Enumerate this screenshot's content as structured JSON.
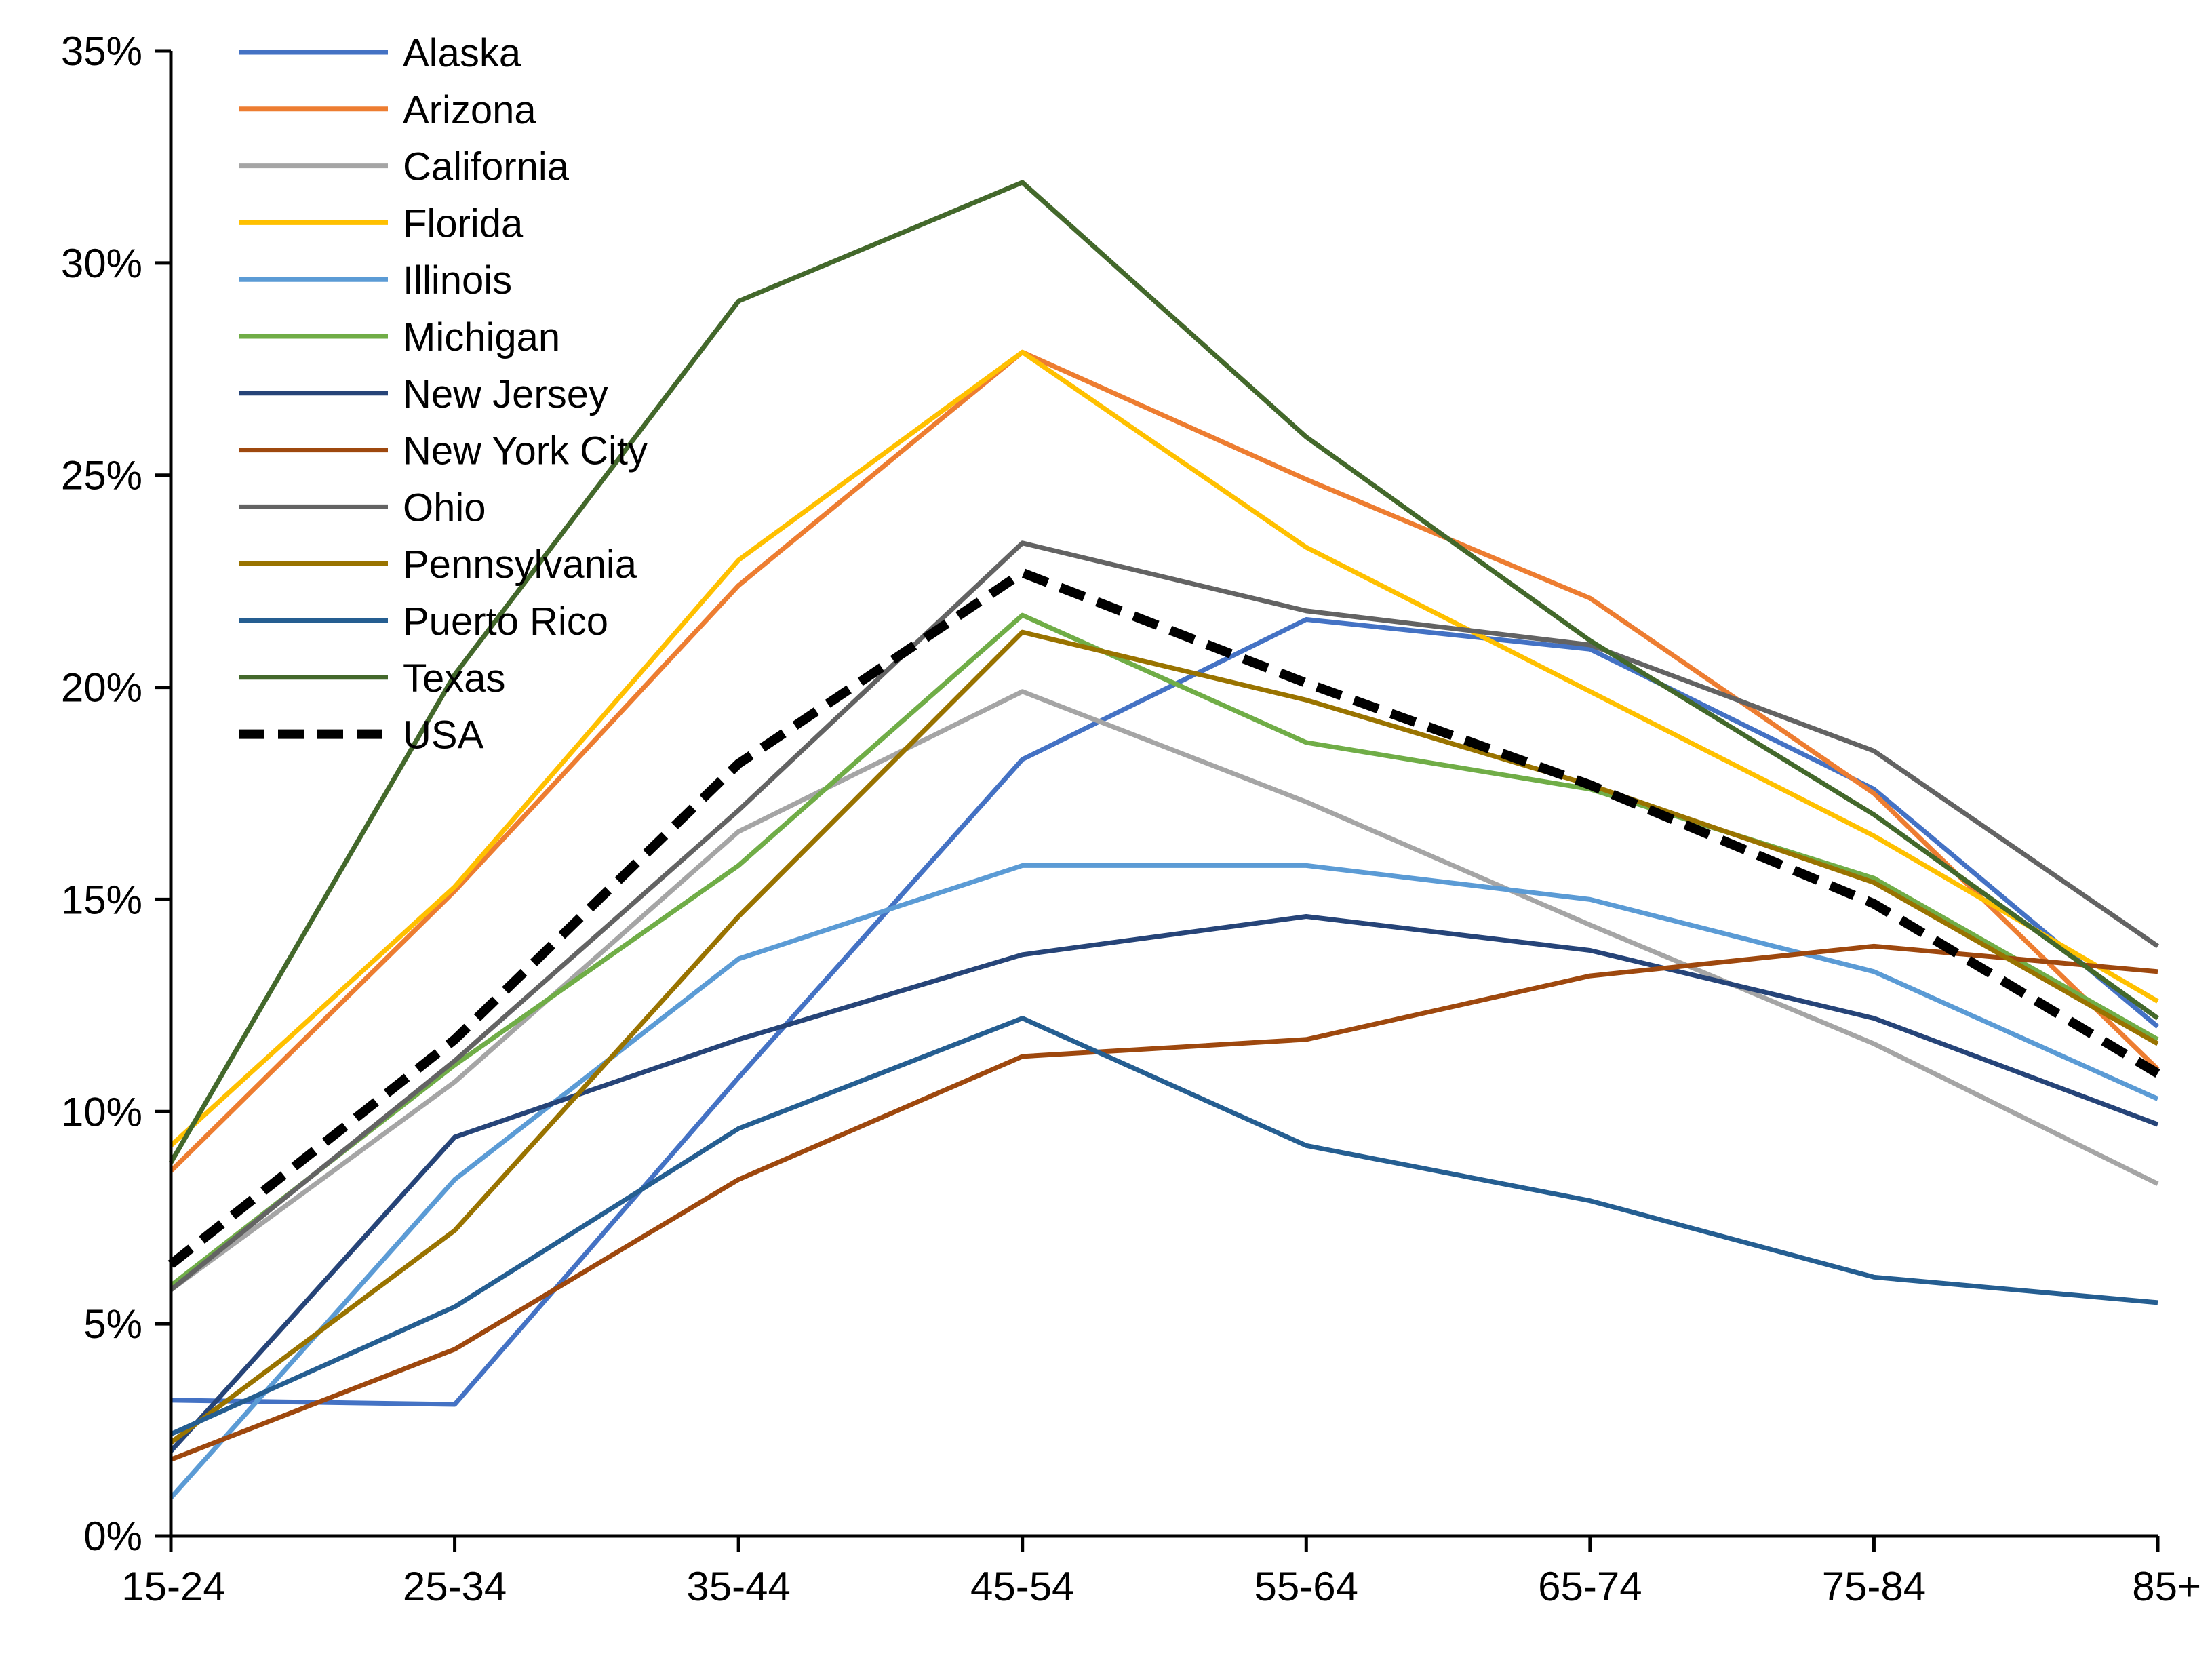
{
  "chart_data": {
    "type": "line",
    "title": "",
    "xlabel": "",
    "ylabel": "",
    "categories": [
      "15-24",
      "25-34",
      "35-44",
      "45-54",
      "55-64",
      "65-74",
      "75-84",
      "85+"
    ],
    "ylim": [
      0,
      35
    ],
    "yticks": [
      0,
      5,
      10,
      15,
      20,
      25,
      30,
      35
    ],
    "ytick_labels": [
      "0%",
      "5%",
      "10%",
      "15%",
      "20%",
      "25%",
      "30%",
      "35%"
    ],
    "grid": false,
    "legend_position": "top-left",
    "series": [
      {
        "name": "Alaska",
        "color": "#4472C4",
        "dashed": false,
        "values": [
          3.2,
          3.1,
          10.8,
          18.3,
          21.6,
          20.9,
          17.6,
          12.0
        ]
      },
      {
        "name": "Arizona",
        "color": "#ED7D31",
        "dashed": false,
        "values": [
          8.6,
          15.2,
          22.4,
          27.9,
          24.9,
          22.1,
          17.5,
          11.0
        ]
      },
      {
        "name": "California",
        "color": "#A5A5A5",
        "dashed": false,
        "values": [
          5.8,
          10.7,
          16.6,
          19.9,
          17.3,
          14.4,
          11.6,
          8.3
        ]
      },
      {
        "name": "Florida",
        "color": "#FFC000",
        "dashed": false,
        "values": [
          9.2,
          15.3,
          23.0,
          27.9,
          23.3,
          19.9,
          16.5,
          12.6
        ]
      },
      {
        "name": "Illinois",
        "color": "#5B9BD5",
        "dashed": false,
        "values": [
          0.9,
          8.4,
          13.6,
          15.8,
          15.8,
          15.0,
          13.3,
          10.3
        ]
      },
      {
        "name": "Michigan",
        "color": "#70AD47",
        "dashed": false,
        "values": [
          5.9,
          11.1,
          15.8,
          21.7,
          18.7,
          17.6,
          15.5,
          11.7
        ]
      },
      {
        "name": "New Jersey",
        "color": "#264478",
        "dashed": false,
        "values": [
          2.0,
          9.4,
          11.7,
          13.7,
          14.6,
          13.8,
          12.2,
          9.7
        ]
      },
      {
        "name": "New York City",
        "color": "#9E480E",
        "dashed": false,
        "values": [
          1.8,
          4.4,
          8.4,
          11.3,
          11.7,
          13.2,
          13.9,
          13.3
        ]
      },
      {
        "name": "Ohio",
        "color": "#636363",
        "dashed": false,
        "values": [
          5.8,
          11.2,
          17.1,
          23.4,
          21.8,
          21.0,
          18.5,
          13.9
        ]
      },
      {
        "name": "Pennsylvania",
        "color": "#997300",
        "dashed": false,
        "values": [
          2.2,
          7.2,
          14.6,
          21.3,
          19.7,
          17.7,
          15.4,
          11.6
        ]
      },
      {
        "name": "Puerto Rico",
        "color": "#255E91",
        "dashed": false,
        "values": [
          2.4,
          5.4,
          9.6,
          12.2,
          9.2,
          7.9,
          6.1,
          5.5
        ]
      },
      {
        "name": "Texas",
        "color": "#43682B",
        "dashed": false,
        "values": [
          8.8,
          20.3,
          29.1,
          31.9,
          25.9,
          21.1,
          17.0,
          12.2
        ]
      },
      {
        "name": "USA",
        "color": "#000000",
        "dashed": true,
        "values": [
          6.4,
          11.7,
          18.2,
          22.7,
          20.1,
          17.7,
          14.9,
          10.9
        ]
      }
    ]
  }
}
